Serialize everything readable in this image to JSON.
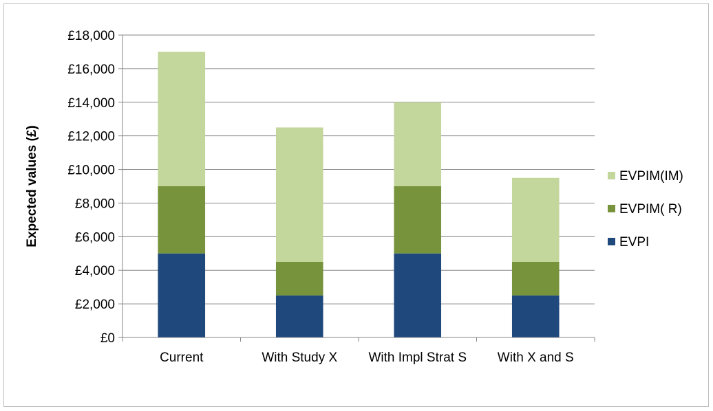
{
  "chart_data": {
    "type": "bar",
    "stacked": true,
    "title": "",
    "xlabel": "",
    "ylabel": "Expected values (£)",
    "ylim": [
      0,
      18000
    ],
    "ytick_step": 2000,
    "ytick_labels": [
      "£0",
      "£2,000",
      "£4,000",
      "£6,000",
      "£8,000",
      "£10,000",
      "£12,000",
      "£14,000",
      "£16,000",
      "£18,000"
    ],
    "grid": true,
    "legend_position": "right",
    "categories": [
      "Current",
      "With Study X",
      "With Impl Strat S",
      "With X and S"
    ],
    "series": [
      {
        "name": "EVPI",
        "values": [
          5000,
          2500,
          5000,
          2500
        ],
        "color": "#1f497d"
      },
      {
        "name": "EVPIM( R)",
        "values": [
          4000,
          2000,
          4000,
          2000
        ],
        "color": "#77933c"
      },
      {
        "name": "EVPIM(IM)",
        "values": [
          8000,
          8000,
          5000,
          5000
        ],
        "color": "#c3d69b"
      }
    ]
  }
}
